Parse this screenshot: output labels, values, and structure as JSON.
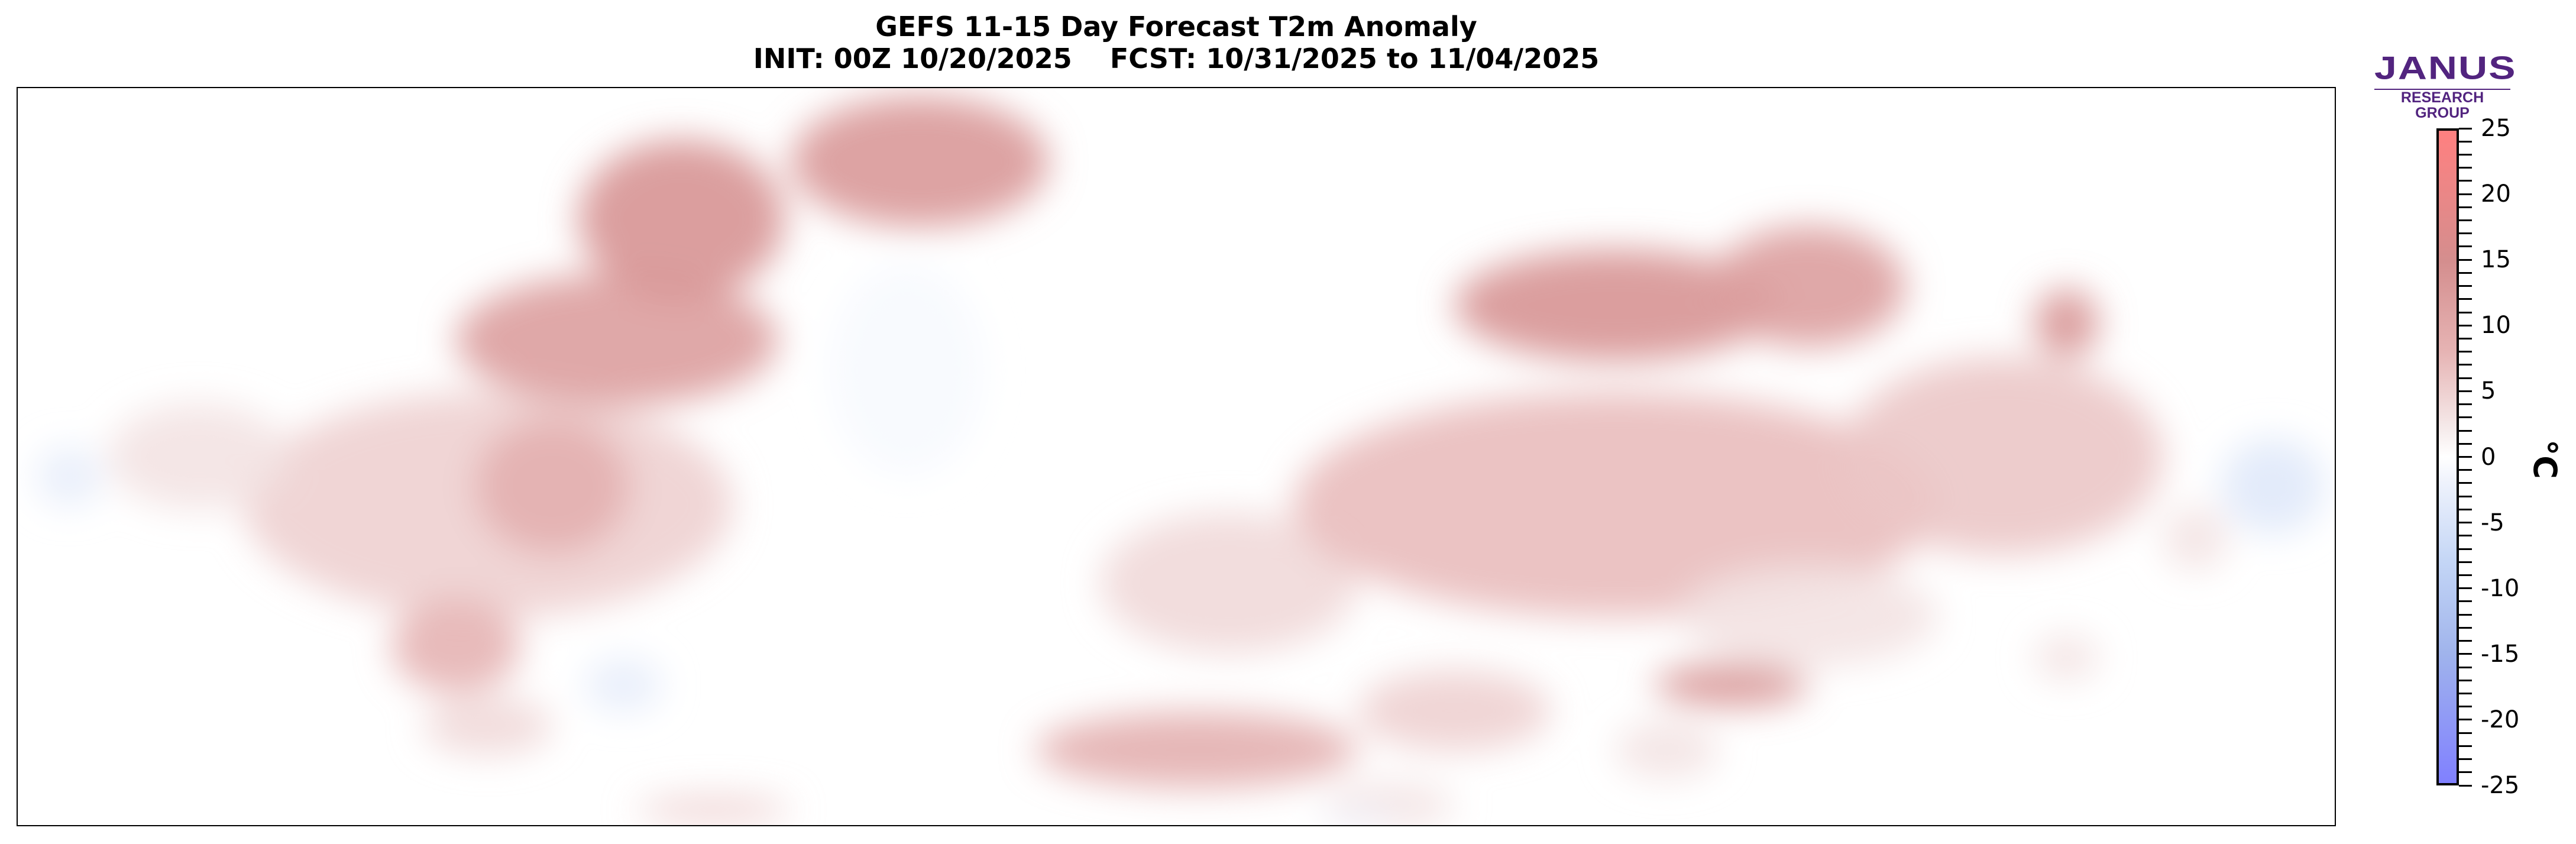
{
  "chart_data": {
    "type": "heatmap",
    "title": "GEFS 11-15 Day Forecast T2m Anomaly",
    "subtitle": "INIT: 00Z 10/20/2025    FCST: 10/31/2025 to 11/04/2025",
    "colorbar": {
      "label": "°C",
      "range": [
        -25,
        25
      ],
      "ticks": [
        "25",
        "20",
        "15",
        "10",
        "5",
        "0",
        "-5",
        "-10",
        "-15",
        "-20",
        "-25"
      ],
      "minor_tick_step": 1,
      "colors": [
        {
          "value": -25,
          "color": "#8080ff"
        },
        {
          "value": -15,
          "color": "#a0b4ec"
        },
        {
          "value": -8,
          "color": "#c4d6f6"
        },
        {
          "value": -2,
          "color": "#eef2fc"
        },
        {
          "value": 0,
          "color": "#ffffff"
        },
        {
          "value": 2,
          "color": "#f6ecec"
        },
        {
          "value": 8,
          "color": "#e6b4b4"
        },
        {
          "value": 15,
          "color": "#d48e8e"
        },
        {
          "value": 25,
          "color": "#ff8080"
        }
      ]
    },
    "projection": "mercator",
    "lon_range": [
      -178,
      182
    ],
    "lat_range": [
      3,
      84
    ],
    "anomaly_regions": [
      {
        "lon": -105,
        "lat": 60,
        "rlon": 38,
        "rlat": 12,
        "value": 5
      },
      {
        "lon": -95,
        "lat": 62,
        "rlon": 12,
        "rlat": 7,
        "value": 9
      },
      {
        "lon": -85,
        "lat": 74,
        "rlon": 25,
        "rlat": 4,
        "value": 12
      },
      {
        "lon": -75,
        "lat": 80,
        "rlon": 16,
        "rlat": 3,
        "value": 14
      },
      {
        "lon": -38,
        "lat": 82,
        "rlon": 20,
        "rlat": 2,
        "value": 13
      },
      {
        "lon": -40,
        "lat": 72,
        "rlon": 12,
        "rlat": 7,
        "value": -1
      },
      {
        "lon": -150,
        "lat": 65,
        "rlon": 14,
        "rlat": 5,
        "value": 3
      },
      {
        "lon": -170,
        "lat": 63,
        "rlon": 5,
        "rlat": 3,
        "value": -3
      },
      {
        "lon": -110,
        "lat": 40,
        "rlon": 10,
        "rlat": 8,
        "value": 8
      },
      {
        "lon": -84,
        "lat": 33,
        "rlon": 6,
        "rlat": 5,
        "value": -3
      },
      {
        "lon": -105,
        "lat": 25,
        "rlon": 10,
        "rlat": 6,
        "value": 4
      },
      {
        "lon": 10,
        "lat": 50,
        "rlon": 20,
        "rlat": 10,
        "value": 4
      },
      {
        "lon": 5,
        "lat": 20,
        "rlon": 25,
        "rlat": 8,
        "value": 9
      },
      {
        "lon": 45,
        "lat": 28,
        "rlon": 15,
        "rlat": 8,
        "value": 5
      },
      {
        "lon": 70,
        "lat": 60,
        "rlon": 50,
        "rlat": 12,
        "value": 7
      },
      {
        "lon": 88,
        "lat": 33,
        "rlon": 12,
        "rlat": 4,
        "value": 14
      },
      {
        "lon": 100,
        "lat": 45,
        "rlon": 20,
        "rlat": 8,
        "value": 3
      },
      {
        "lon": 130,
        "lat": 65,
        "rlon": 25,
        "rlat": 9,
        "value": 6
      },
      {
        "lon": 172,
        "lat": 62,
        "rlon": 8,
        "rlat": 5,
        "value": -4
      },
      {
        "lon": 70,
        "lat": 76,
        "rlon": 25,
        "rlat": 3,
        "value": 14
      },
      {
        "lon": 100,
        "lat": 77,
        "rlon": 15,
        "rlat": 3,
        "value": 12
      },
      {
        "lon": 140,
        "lat": 75,
        "rlon": 5,
        "rlat": 2,
        "value": 14
      },
      {
        "lon": 160,
        "lat": 56,
        "rlon": 5,
        "rlat": 4,
        "value": 3
      },
      {
        "lon": 78,
        "lat": 20,
        "rlon": 8,
        "rlat": 6,
        "value": 3
      },
      {
        "lon": 140,
        "lat": 38,
        "rlon": 5,
        "rlat": 4,
        "value": 3
      },
      {
        "lon": -70,
        "lat": 7,
        "rlon": 12,
        "rlat": 3,
        "value": 5
      },
      {
        "lon": 35,
        "lat": 8,
        "rlon": 10,
        "rlat": 5,
        "value": 3
      },
      {
        "lon": 30,
        "lat": 5,
        "rlon": 6,
        "rlat": 2,
        "value": -2
      }
    ]
  },
  "logo": {
    "name": "JANUS",
    "tagline": "RESEARCH GROUP"
  }
}
